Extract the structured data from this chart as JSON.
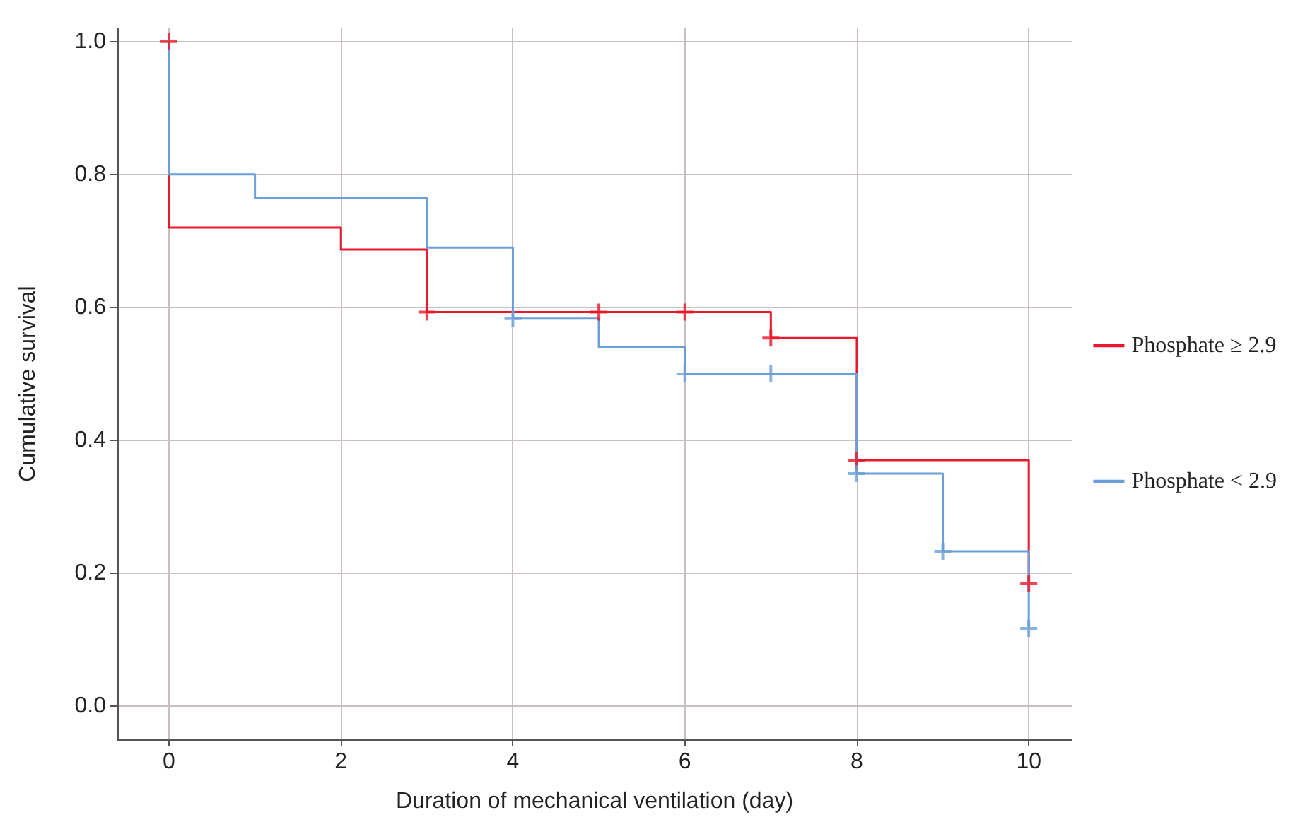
{
  "chart_data": {
    "type": "step",
    "xlabel": "Duration of mechanical ventilation (day)",
    "ylabel": "Cumulative survival",
    "xlim": [
      -0.6,
      10.5
    ],
    "xticks": [
      0,
      2,
      4,
      6,
      8,
      10
    ],
    "ylim": [
      -0.05,
      1.02
    ],
    "yticks": [
      {
        "value": 0,
        "label": "0.0"
      },
      {
        "value": 0.2,
        "label": "0.2"
      },
      {
        "value": 0.4,
        "label": "0.4"
      },
      {
        "value": 0.6,
        "label": "0.6"
      },
      {
        "value": 0.8,
        "label": "0.8"
      },
      {
        "value": 1,
        "label": "1.0"
      }
    ],
    "grid": true,
    "legend": "right",
    "line_style": "solid",
    "series": [
      {
        "name": "Phosphate ≥ 2.9",
        "color": "#e8192c",
        "x": [
          0,
          0,
          2,
          3,
          7,
          8,
          10
        ],
        "values": [
          1.0,
          0.72,
          0.687,
          0.593,
          0.554,
          0.37,
          0.185
        ]
      },
      {
        "name": "Phosphate < 2.9",
        "color": "#6a9fd8",
        "x": [
          0,
          0,
          1,
          3,
          4,
          5,
          6,
          8,
          9,
          10
        ],
        "values": [
          1.0,
          0.8,
          0.765,
          0.69,
          0.583,
          0.54,
          0.5,
          0.35,
          0.233,
          0.117
        ]
      },
      {
        "type": "scatter",
        "marker": "cross",
        "color": "#e8192c",
        "x": [
          0,
          3,
          5,
          6,
          7,
          8,
          10
        ],
        "values": [
          1.0,
          0.593,
          0.593,
          0.593,
          0.554,
          0.37,
          0.185
        ]
      },
      {
        "type": "scatter",
        "marker": "cross",
        "color": "#6a9fd8",
        "x": [
          4,
          6,
          7,
          8,
          9,
          10
        ],
        "values": [
          0.583,
          0.5,
          0.5,
          0.35,
          0.233,
          0.117
        ]
      }
    ]
  }
}
